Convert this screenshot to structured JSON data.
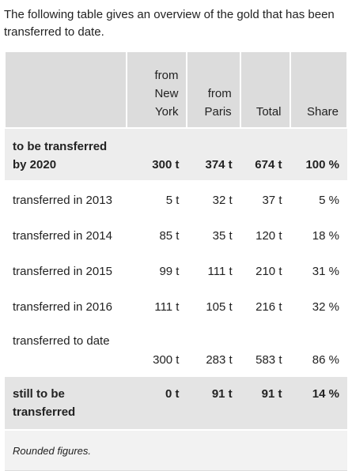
{
  "intro": "The following table gives an overview of the gold that has been transferred to date.",
  "table": {
    "header": [
      "from New York",
      "from Paris",
      "Total",
      "Share"
    ],
    "rows": [
      [
        "to be transferred by 2020",
        "300 t",
        "374 t",
        "674 t",
        "100 %"
      ],
      [
        "transferred in 2013",
        "5 t",
        "32 t",
        "37 t",
        "5 %"
      ],
      [
        "transferred in 2014",
        "85 t",
        "35 t",
        "120 t",
        "18 %"
      ],
      [
        "transferred in 2015",
        "99 t",
        "111 t",
        "210 t",
        "31 %"
      ],
      [
        "transferred in 2016",
        "111 t",
        "105 t",
        "216 t",
        "32 %"
      ],
      [
        "transferred to date",
        "300 t",
        "283 t",
        "583 t",
        "86 %"
      ],
      [
        "still to be transferred",
        "0 t",
        "91 t",
        "91 t",
        "14 %"
      ]
    ],
    "footnote": "Rounded figures."
  }
}
